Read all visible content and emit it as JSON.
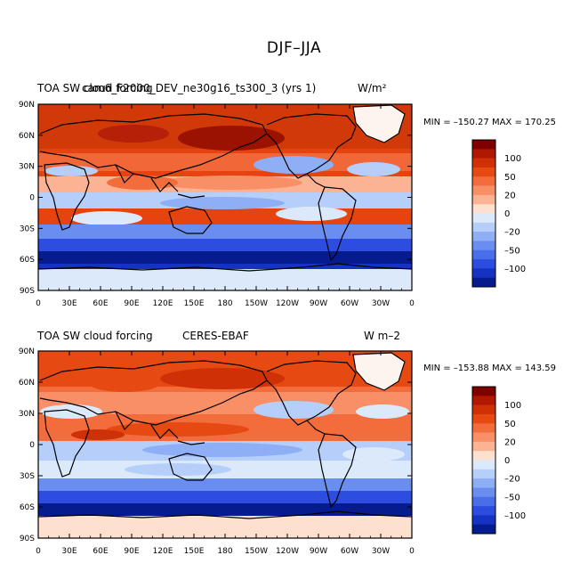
{
  "page_title": "DJF–JJA",
  "panels": [
    {
      "id": "model",
      "left_title": "TOA SW cloud forcing",
      "center_title": "cam6_F2000_DEV_ne30g16_ts300_3 (yrs 1)",
      "right_title": "W/m²",
      "min_max": "MIN = –150.27 MAX = 170.25"
    },
    {
      "id": "obs",
      "left_title": "TOA SW cloud forcing",
      "center_title": "CERES-EBAF",
      "right_title": "W m–2",
      "min_max": "MIN = –153.88 MAX = 143.59"
    }
  ],
  "lat_labels": [
    "90N",
    "60N",
    "30N",
    "0",
    "30S",
    "60S",
    "90S"
  ],
  "lon_labels": [
    "0",
    "30E",
    "60E",
    "90E",
    "120E",
    "150E",
    "180",
    "150W",
    "120W",
    "90W",
    "60W",
    "30W",
    "0"
  ],
  "colorbar": {
    "labels": [
      "100",
      "50",
      "20",
      "0",
      "–20",
      "–50",
      "–100"
    ],
    "colors": [
      "#7f0000",
      "#b01800",
      "#cf3006",
      "#e64a12",
      "#f36c3c",
      "#f98f66",
      "#fcb394",
      "#fde0cd",
      "#dbe9fb",
      "#b5cffa",
      "#8eaef6",
      "#6a8ef0",
      "#4a6dea",
      "#2c4de0",
      "#1532c2",
      "#061c8e"
    ]
  },
  "colors": {
    "strong_pos": "#e54410",
    "pos": "#f36c3c",
    "weak_pos": "#fcb394",
    "neutral": "#fde0cd",
    "weak_neg": "#b5cffa",
    "neg": "#6a8ef0",
    "strong_neg": "#1532c2",
    "deep_neg": "#061c8e"
  }
}
